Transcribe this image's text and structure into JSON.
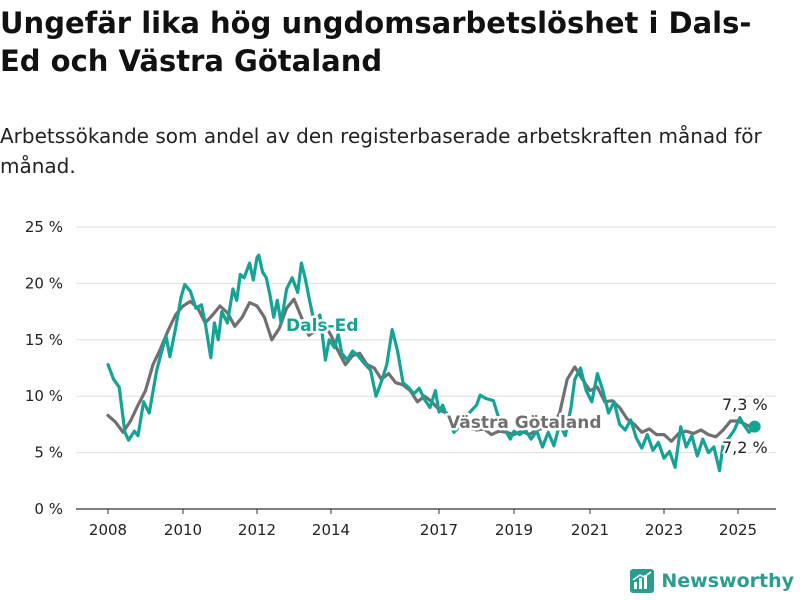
{
  "title": "Ungefär lika hög ungdomsarbetslöshet i Dals-Ed och Västra Götaland",
  "subtitle": "Arbetssökande som andel av den registerbaserade arbetskraften månad för månad.",
  "brand": "Newsworthy",
  "colors": {
    "dals_ed": "#14a395",
    "vastra_gotaland": "#707070",
    "grid": "#dddddd",
    "axis": "#333333"
  },
  "chart_data": {
    "type": "line",
    "title": "Ungefär lika hög ungdomsarbetslöshet i Dals-Ed och Västra Götaland",
    "subtitle": "Arbetssökande som andel av den registerbaserade arbetskraften månad för månad.",
    "xlabel": "",
    "ylabel": "",
    "xlim": [
      2007.5,
      2026.2
    ],
    "ylim": [
      0,
      25
    ],
    "grid": true,
    "legend": "inline labels",
    "x_ticks": [
      {
        "value": 2008,
        "label": "2008"
      },
      {
        "value": 2010,
        "label": "2010"
      },
      {
        "value": 2012,
        "label": "2012"
      },
      {
        "value": 2014,
        "label": "2014"
      },
      {
        "value": 2017,
        "label": "2017"
      },
      {
        "value": 2019,
        "label": "2019"
      },
      {
        "value": 2021,
        "label": "2021"
      },
      {
        "value": 2023,
        "label": "2023"
      },
      {
        "value": 2025,
        "label": "2025"
      }
    ],
    "y_ticks": [
      {
        "value": 0,
        "label": "0 %"
      },
      {
        "value": 5,
        "label": "5 %"
      },
      {
        "value": 10,
        "label": "10 %"
      },
      {
        "value": 15,
        "label": "15 %"
      },
      {
        "value": 20,
        "label": "20 %"
      },
      {
        "value": 25,
        "label": "25 %"
      }
    ],
    "series": [
      {
        "name": "Västra Götaland",
        "color": "#707070",
        "end_label": "7,2 %",
        "points": [
          [
            2008.0,
            8.3
          ],
          [
            2008.2,
            7.7
          ],
          [
            2008.4,
            6.8
          ],
          [
            2008.6,
            7.8
          ],
          [
            2008.8,
            9.2
          ],
          [
            2009.0,
            10.5
          ],
          [
            2009.2,
            12.8
          ],
          [
            2009.4,
            14.2
          ],
          [
            2009.6,
            15.8
          ],
          [
            2009.8,
            17.2
          ],
          [
            2010.0,
            18.0
          ],
          [
            2010.2,
            18.4
          ],
          [
            2010.4,
            17.8
          ],
          [
            2010.6,
            16.5
          ],
          [
            2010.8,
            17.2
          ],
          [
            2011.0,
            18.0
          ],
          [
            2011.2,
            17.4
          ],
          [
            2011.4,
            16.2
          ],
          [
            2011.6,
            17.0
          ],
          [
            2011.8,
            18.3
          ],
          [
            2012.0,
            18.0
          ],
          [
            2012.2,
            17.0
          ],
          [
            2012.4,
            15.0
          ],
          [
            2012.6,
            16.0
          ],
          [
            2012.8,
            17.8
          ],
          [
            2013.0,
            18.6
          ],
          [
            2013.2,
            17.0
          ],
          [
            2013.4,
            15.4
          ],
          [
            2013.6,
            15.8
          ],
          [
            2013.8,
            16.5
          ],
          [
            2014.0,
            15.4
          ],
          [
            2014.2,
            14.0
          ],
          [
            2014.4,
            12.8
          ],
          [
            2014.6,
            13.6
          ],
          [
            2014.8,
            13.8
          ],
          [
            2015.0,
            12.8
          ],
          [
            2015.2,
            12.5
          ],
          [
            2015.4,
            11.5
          ],
          [
            2015.6,
            12.0
          ],
          [
            2015.8,
            11.2
          ],
          [
            2016.0,
            11.0
          ],
          [
            2016.2,
            10.5
          ],
          [
            2016.4,
            9.5
          ],
          [
            2016.6,
            10.0
          ],
          [
            2016.8,
            9.5
          ],
          [
            2017.0,
            8.8
          ],
          [
            2017.2,
            8.5
          ],
          [
            2017.4,
            7.6
          ],
          [
            2017.6,
            7.8
          ],
          [
            2017.8,
            7.2
          ],
          [
            2018.0,
            7.0
          ],
          [
            2018.2,
            7.1
          ],
          [
            2018.4,
            6.6
          ],
          [
            2018.6,
            6.9
          ],
          [
            2018.8,
            6.8
          ],
          [
            2019.0,
            6.6
          ],
          [
            2019.2,
            6.9
          ],
          [
            2019.4,
            6.6
          ],
          [
            2019.6,
            7.0
          ],
          [
            2019.8,
            7.2
          ],
          [
            2020.0,
            7.2
          ],
          [
            2020.2,
            8.5
          ],
          [
            2020.4,
            11.5
          ],
          [
            2020.6,
            12.6
          ],
          [
            2020.8,
            11.5
          ],
          [
            2021.0,
            10.5
          ],
          [
            2021.2,
            10.8
          ],
          [
            2021.4,
            9.5
          ],
          [
            2021.6,
            9.6
          ],
          [
            2021.8,
            9.0
          ],
          [
            2022.0,
            8.0
          ],
          [
            2022.2,
            7.5
          ],
          [
            2022.4,
            6.8
          ],
          [
            2022.6,
            7.1
          ],
          [
            2022.8,
            6.6
          ],
          [
            2023.0,
            6.6
          ],
          [
            2023.2,
            6.0
          ],
          [
            2023.4,
            6.7
          ],
          [
            2023.6,
            6.9
          ],
          [
            2023.8,
            6.7
          ],
          [
            2024.0,
            7.0
          ],
          [
            2024.2,
            6.6
          ],
          [
            2024.4,
            6.4
          ],
          [
            2024.6,
            7.0
          ],
          [
            2024.8,
            7.8
          ],
          [
            2025.0,
            7.8
          ],
          [
            2025.2,
            7.5
          ],
          [
            2025.4,
            7.2
          ]
        ]
      },
      {
        "name": "Dals-Ed",
        "color": "#14a395",
        "end_label": "7,3 %",
        "points": [
          [
            2008.0,
            12.8
          ],
          [
            2008.15,
            11.5
          ],
          [
            2008.3,
            10.8
          ],
          [
            2008.45,
            6.8
          ],
          [
            2008.55,
            6.1
          ],
          [
            2008.7,
            6.9
          ],
          [
            2008.8,
            6.5
          ],
          [
            2008.95,
            9.5
          ],
          [
            2009.1,
            8.5
          ],
          [
            2009.3,
            12.3
          ],
          [
            2009.45,
            14.2
          ],
          [
            2009.55,
            15.3
          ],
          [
            2009.65,
            13.5
          ],
          [
            2009.8,
            16.0
          ],
          [
            2009.95,
            18.8
          ],
          [
            2010.05,
            19.9
          ],
          [
            2010.2,
            19.3
          ],
          [
            2010.35,
            17.8
          ],
          [
            2010.5,
            18.1
          ],
          [
            2010.6,
            16.5
          ],
          [
            2010.75,
            13.4
          ],
          [
            2010.85,
            16.5
          ],
          [
            2010.95,
            15.0
          ],
          [
            2011.05,
            17.5
          ],
          [
            2011.2,
            16.5
          ],
          [
            2011.35,
            19.5
          ],
          [
            2011.45,
            18.5
          ],
          [
            2011.55,
            20.8
          ],
          [
            2011.65,
            20.5
          ],
          [
            2011.8,
            21.8
          ],
          [
            2011.9,
            20.3
          ],
          [
            2012.0,
            22.3
          ],
          [
            2012.05,
            22.5
          ],
          [
            2012.15,
            21.0
          ],
          [
            2012.25,
            20.5
          ],
          [
            2012.35,
            19.0
          ],
          [
            2012.45,
            17.0
          ],
          [
            2012.55,
            18.5
          ],
          [
            2012.65,
            16.5
          ],
          [
            2012.8,
            19.5
          ],
          [
            2012.95,
            20.5
          ],
          [
            2013.1,
            19.2
          ],
          [
            2013.2,
            21.8
          ],
          [
            2013.3,
            20.5
          ],
          [
            2013.45,
            18.0
          ],
          [
            2013.55,
            16.5
          ],
          [
            2013.7,
            17.2
          ],
          [
            2013.85,
            13.2
          ],
          [
            2013.95,
            15.0
          ],
          [
            2014.1,
            14.3
          ],
          [
            2014.2,
            15.5
          ],
          [
            2014.3,
            13.8
          ],
          [
            2014.45,
            13.2
          ],
          [
            2014.6,
            14.0
          ],
          [
            2014.75,
            13.6
          ],
          [
            2014.9,
            13.0
          ],
          [
            2015.1,
            12.3
          ],
          [
            2015.25,
            10.0
          ],
          [
            2015.4,
            11.3
          ],
          [
            2015.55,
            12.8
          ],
          [
            2015.7,
            15.9
          ],
          [
            2015.85,
            14.0
          ],
          [
            2016.0,
            11.2
          ],
          [
            2016.15,
            10.8
          ],
          [
            2016.3,
            10.2
          ],
          [
            2016.45,
            10.7
          ],
          [
            2016.6,
            9.7
          ],
          [
            2016.75,
            9.0
          ],
          [
            2016.9,
            10.5
          ],
          [
            2017.0,
            8.6
          ],
          [
            2017.1,
            9.2
          ],
          [
            2017.25,
            7.8
          ],
          [
            2017.4,
            6.8
          ],
          [
            2017.6,
            7.5
          ],
          [
            2017.8,
            8.5
          ],
          [
            2018.0,
            9.2
          ],
          [
            2018.1,
            10.1
          ],
          [
            2018.25,
            9.8
          ],
          [
            2018.45,
            9.6
          ],
          [
            2018.6,
            8.0
          ],
          [
            2018.8,
            6.8
          ],
          [
            2018.9,
            6.2
          ],
          [
            2019.0,
            6.9
          ],
          [
            2019.15,
            6.6
          ],
          [
            2019.3,
            7.0
          ],
          [
            2019.45,
            6.2
          ],
          [
            2019.6,
            6.9
          ],
          [
            2019.75,
            5.5
          ],
          [
            2019.9,
            6.8
          ],
          [
            2020.05,
            5.6
          ],
          [
            2020.2,
            7.5
          ],
          [
            2020.35,
            6.5
          ],
          [
            2020.5,
            9.0
          ],
          [
            2020.6,
            11.5
          ],
          [
            2020.75,
            12.5
          ],
          [
            2020.9,
            10.5
          ],
          [
            2021.05,
            9.5
          ],
          [
            2021.2,
            12.0
          ],
          [
            2021.35,
            10.5
          ],
          [
            2021.5,
            8.5
          ],
          [
            2021.65,
            9.5
          ],
          [
            2021.8,
            7.5
          ],
          [
            2021.95,
            7.0
          ],
          [
            2022.1,
            7.9
          ],
          [
            2022.25,
            6.3
          ],
          [
            2022.4,
            5.4
          ],
          [
            2022.55,
            6.6
          ],
          [
            2022.7,
            5.2
          ],
          [
            2022.85,
            5.9
          ],
          [
            2023.0,
            4.5
          ],
          [
            2023.15,
            5.1
          ],
          [
            2023.3,
            3.7
          ],
          [
            2023.45,
            7.3
          ],
          [
            2023.6,
            5.5
          ],
          [
            2023.75,
            6.5
          ],
          [
            2023.9,
            4.7
          ],
          [
            2024.05,
            6.2
          ],
          [
            2024.2,
            5.0
          ],
          [
            2024.35,
            5.5
          ],
          [
            2024.5,
            3.4
          ],
          [
            2024.6,
            5.8
          ],
          [
            2024.75,
            6.3
          ],
          [
            2024.9,
            7.0
          ],
          [
            2025.05,
            8.1
          ],
          [
            2025.15,
            7.5
          ],
          [
            2025.3,
            6.8
          ],
          [
            2025.45,
            7.3
          ]
        ]
      }
    ],
    "annotations": [
      {
        "text": "Dals-Ed",
        "series": "Dals-Ed"
      },
      {
        "text": "Västra Götaland",
        "series": "Västra Götaland"
      },
      {
        "text": "7,3 %",
        "series": "Dals-Ed"
      },
      {
        "text": "7,2 %",
        "series": "Västra Götaland"
      }
    ]
  }
}
